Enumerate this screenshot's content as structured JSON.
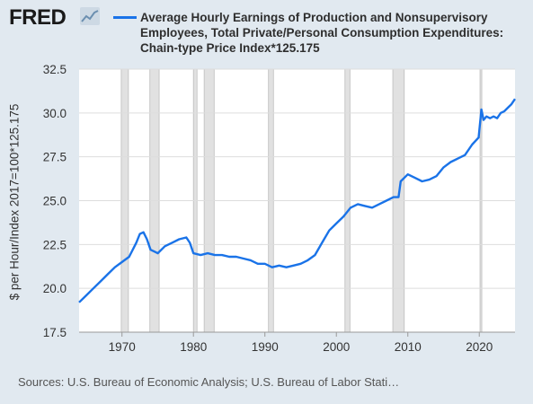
{
  "header": {
    "logo_text": "FRED",
    "logo_icon": "line-chart-icon",
    "legend_label": "Average Hourly Earnings of Production and Nonsupervisory Employees, Total Private/Personal Consumption Expenditures: Chain-type Price Index*125.175",
    "series_color": "#1a73e8"
  },
  "source_text": "Sources: U.S. Bureau of Economic Analysis; U.S. Bureau of Labor Stati…",
  "colors": {
    "page_bg": "#e1e9f0",
    "plot_bg": "#ffffff",
    "recession": "#e1e1e1",
    "grid": "#dddddd"
  },
  "chart_data": {
    "type": "line",
    "title": "",
    "ylabel": "$ per Hour/Index 2017=100*125.175",
    "xlabel": "",
    "xlim": [
      1964,
      2025
    ],
    "ylim": [
      17.5,
      32.5
    ],
    "yticks": [
      "17.5",
      "20.0",
      "22.5",
      "25.0",
      "27.5",
      "30.0",
      "32.5"
    ],
    "xticks": [
      "1970",
      "1980",
      "1990",
      "2000",
      "2010",
      "2020"
    ],
    "grid": true,
    "legend_position": "top",
    "recessions": [
      [
        1969.9,
        1970.9
      ],
      [
        1973.9,
        1975.2
      ],
      [
        1980.0,
        1980.5
      ],
      [
        1981.5,
        1982.9
      ],
      [
        1990.5,
        1991.2
      ],
      [
        2001.2,
        2001.9
      ],
      [
        2007.9,
        2009.5
      ],
      [
        2020.1,
        2020.35
      ]
    ],
    "series": [
      {
        "name": "Average Hourly Earnings of Production and Nonsupervisory Employees, Total Private/Personal Consumption Expenditures: Chain-type Price Index*125.175",
        "x": [
          1964,
          1965,
          1966,
          1967,
          1968,
          1969,
          1970,
          1971,
          1972,
          1972.5,
          1973,
          1973.5,
          1974,
          1974.5,
          1975,
          1976,
          1977,
          1978,
          1979,
          1979.5,
          1980,
          1981,
          1982,
          1983,
          1984,
          1985,
          1986,
          1987,
          1988,
          1989,
          1990,
          1991,
          1992,
          1993,
          1994,
          1995,
          1996,
          1997,
          1998,
          1999,
          2000,
          2001,
          2002,
          2003,
          2004,
          2005,
          2006,
          2007,
          2008,
          2008.7,
          2009,
          2010,
          2011,
          2012,
          2013,
          2014,
          2015,
          2016,
          2017,
          2018,
          2019,
          2019.9,
          2020.3,
          2020.6,
          2021,
          2021.5,
          2022,
          2022.5,
          2023,
          2023.5,
          2024,
          2024.5,
          2025
        ],
        "y": [
          19.2,
          19.6,
          20.0,
          20.4,
          20.8,
          21.2,
          21.5,
          21.8,
          22.6,
          23.1,
          23.2,
          22.8,
          22.2,
          22.1,
          22.0,
          22.4,
          22.6,
          22.8,
          22.9,
          22.6,
          22.0,
          21.9,
          22.0,
          21.9,
          21.9,
          21.8,
          21.8,
          21.7,
          21.6,
          21.4,
          21.4,
          21.2,
          21.3,
          21.2,
          21.3,
          21.4,
          21.6,
          21.9,
          22.6,
          23.3,
          23.7,
          24.1,
          24.6,
          24.8,
          24.7,
          24.6,
          24.8,
          25.0,
          25.2,
          25.2,
          26.1,
          26.5,
          26.3,
          26.1,
          26.2,
          26.4,
          26.9,
          27.2,
          27.4,
          27.6,
          28.2,
          28.6,
          30.2,
          29.6,
          29.8,
          29.7,
          29.8,
          29.7,
          30.0,
          30.1,
          30.3,
          30.5,
          30.8
        ]
      }
    ]
  }
}
